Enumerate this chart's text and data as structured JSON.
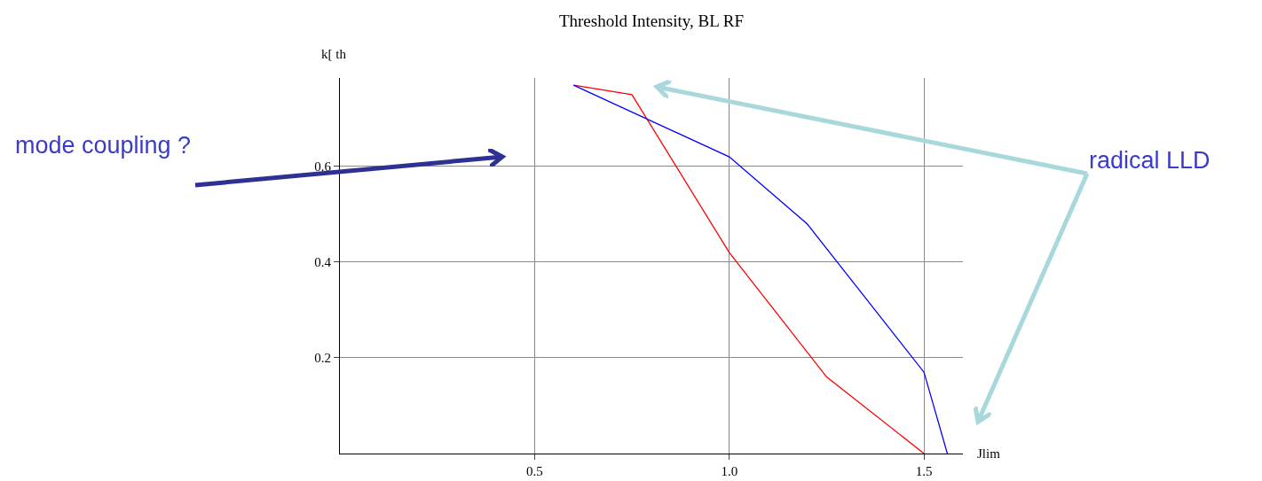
{
  "chart_data": {
    "type": "line",
    "title": "Threshold Intensity, BL RF",
    "xlabel": "Jlim",
    "ylabel": "k[ th",
    "series": [
      {
        "color": "#ff0000",
        "x": [
          0.6,
          0.75,
          1.0,
          1.25,
          1.5
        ],
        "values": [
          0.77,
          0.75,
          0.42,
          0.16,
          0
        ]
      },
      {
        "color": "#0000ff",
        "x": [
          0.6,
          1.0,
          1.2,
          1.5,
          1.56
        ],
        "values": [
          0.77,
          0.62,
          0.48,
          0.17,
          0
        ]
      }
    ],
    "xlim": [
      0,
      1.6
    ],
    "ylim": [
      0,
      0.785
    ],
    "xticks": [
      0.5,
      {
        "value": 1.0,
        "label": "1.0"
      },
      1.5
    ],
    "yticks": [
      0.2,
      0.4,
      0.6
    ],
    "grid": true,
    "marker": "none",
    "line_style": "solid",
    "annotations": [
      "mode coupling ?",
      "radical LLD"
    ]
  }
}
